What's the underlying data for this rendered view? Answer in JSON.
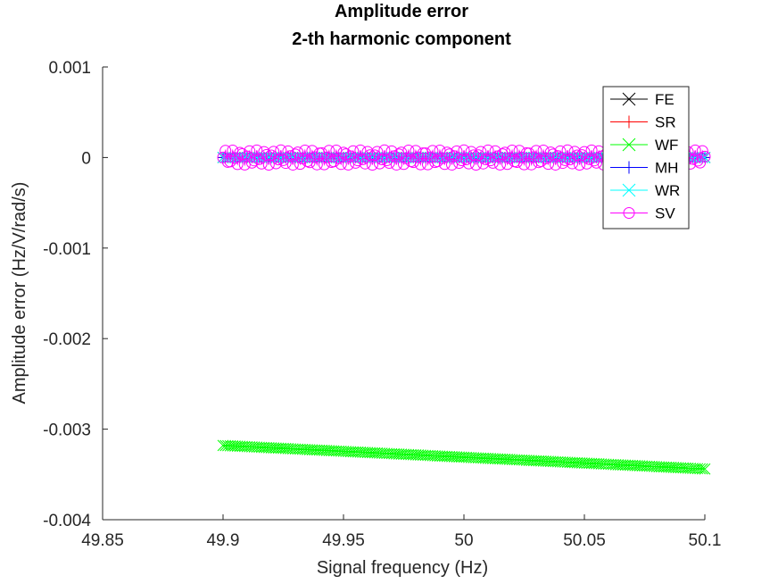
{
  "chart_data": {
    "type": "line",
    "title": "Amplitude error",
    "subtitle": "2-th harmonic component",
    "xlabel": "Signal frequency (Hz)",
    "ylabel": "Amplitude error (Hz/V/rad/s)",
    "xlim": [
      49.85,
      50.1
    ],
    "ylim": [
      -0.004,
      0.001
    ],
    "xticks": [
      49.85,
      49.9,
      49.95,
      50,
      50.05,
      50.1
    ],
    "xtick_labels": [
      "49.85",
      "49.9",
      "49.95",
      "50",
      "50.05",
      "50.1"
    ],
    "yticks": [
      0.001,
      0,
      -0.001,
      -0.002,
      -0.003,
      -0.004
    ],
    "ytick_labels": [
      "0.001",
      "0",
      "-0.001",
      "-0.002",
      "-0.003",
      "-0.004"
    ],
    "grid": false,
    "legend_position": "top-right",
    "x_range": [
      49.9,
      50.1
    ],
    "series": [
      {
        "name": "FE",
        "color": "#000000",
        "marker": "x",
        "y_start": 0,
        "y_end": 0,
        "oscillation": 0
      },
      {
        "name": "SR",
        "color": "#ff0000",
        "marker": "+",
        "y_start": 0,
        "y_end": 0,
        "oscillation": 0
      },
      {
        "name": "WF",
        "color": "#00ff00",
        "marker": "x",
        "y_start": -0.00318,
        "y_end": -0.00344,
        "oscillation": 0
      },
      {
        "name": "MH",
        "color": "#0000ff",
        "marker": "+",
        "y_start": 0,
        "y_end": 0,
        "oscillation": 0
      },
      {
        "name": "WR",
        "color": "#00ffff",
        "marker": "x",
        "y_start": 0,
        "y_end": 0,
        "oscillation": 0
      },
      {
        "name": "SV",
        "color": "#ff00ff",
        "marker": "o",
        "y_start": 0,
        "y_end": 0,
        "oscillation": 8e-05
      }
    ]
  }
}
